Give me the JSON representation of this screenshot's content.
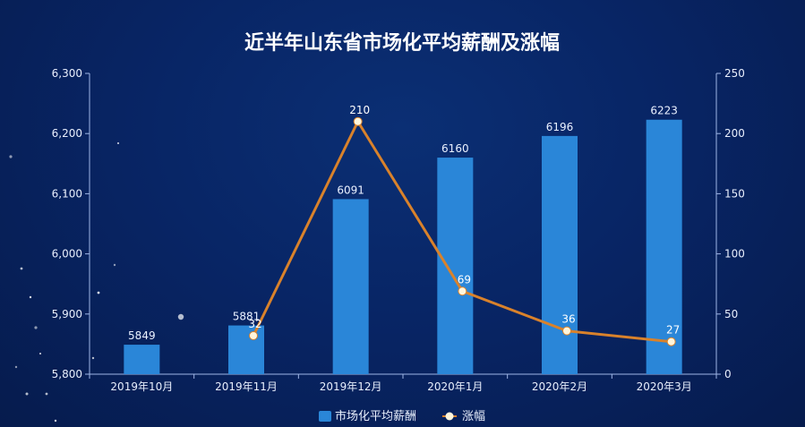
{
  "chart_data": {
    "type": "bar+line",
    "title": "近半年山东省市场化平均薪酬及涨幅",
    "categories": [
      "2019年10月",
      "2019年11月",
      "2019年12月",
      "2020年1月",
      "2020年2月",
      "2020年3月"
    ],
    "series": [
      {
        "name": "市场化平均薪酬",
        "type": "bar",
        "axis": "left",
        "values": [
          5849,
          5881,
          6091,
          6160,
          6196,
          6223
        ],
        "color": "#2a86d8"
      },
      {
        "name": "涨幅",
        "type": "line",
        "axis": "right",
        "values": [
          null,
          32,
          210,
          69,
          36,
          27
        ],
        "color": "#d9822b",
        "marker_color": "#fff6dc"
      }
    ],
    "y_left": {
      "ylim": [
        5800,
        6300
      ],
      "ticks": [
        5800,
        5900,
        6000,
        6100,
        6200,
        6300
      ],
      "tick_labels": [
        "5,800",
        "5,900",
        "6,000",
        "6,100",
        "6,200",
        "6,300"
      ]
    },
    "y_right": {
      "ylim": [
        0,
        250
      ],
      "ticks": [
        0,
        50,
        100,
        150,
        200,
        250
      ],
      "tick_labels": [
        "0",
        "50",
        "100",
        "150",
        "200",
        "250"
      ]
    },
    "legend": {
      "position": "bottom-center",
      "entries": [
        "市场化平均薪酬",
        "涨幅"
      ]
    },
    "grid": false
  }
}
